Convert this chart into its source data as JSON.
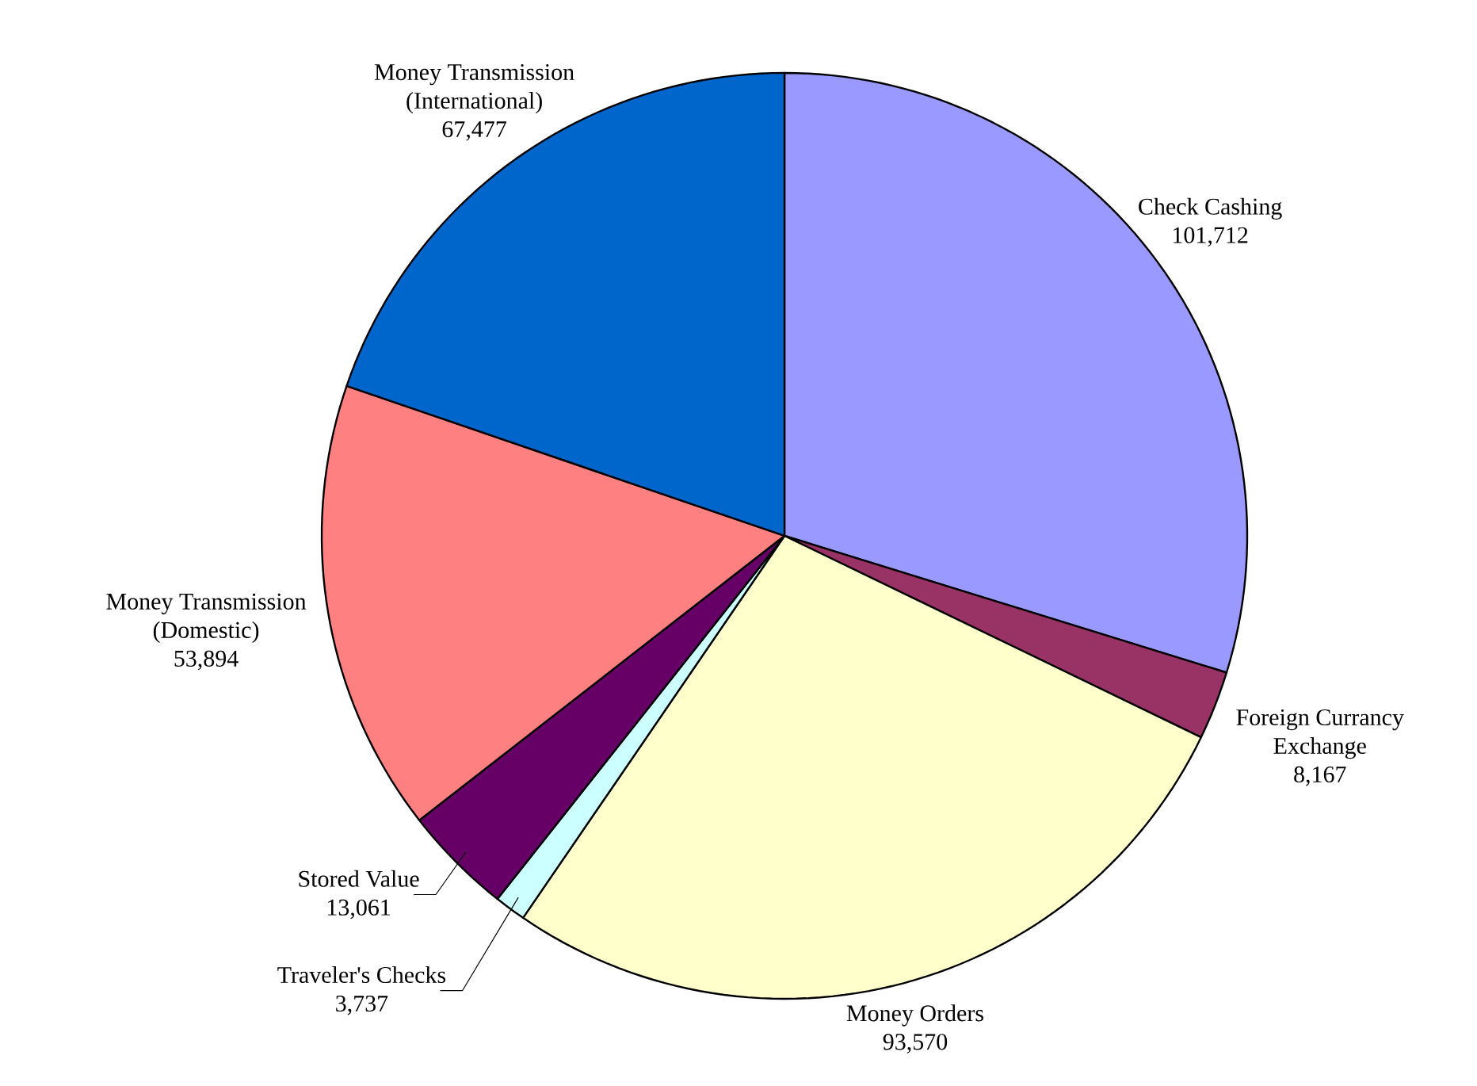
{
  "chart_data": {
    "type": "pie",
    "categories": [
      "Check Cashing",
      "Foreign Currancy Exchange",
      "Money Orders",
      "Traveler's Checks",
      "Stored Value",
      "Money Transmission (Domestic)",
      "Money Transmission (International)"
    ],
    "values": [
      101712,
      8167,
      93570,
      3737,
      13061,
      53894,
      67477
    ],
    "value_labels": [
      "101,712",
      "8,167",
      "93,570",
      "3,737",
      "13,061",
      "53,894",
      "67,477"
    ],
    "colors": [
      "#9999ff",
      "#993366",
      "#ffffcc",
      "#ccffff",
      "#660066",
      "#ff8080",
      "#0066cc"
    ]
  }
}
